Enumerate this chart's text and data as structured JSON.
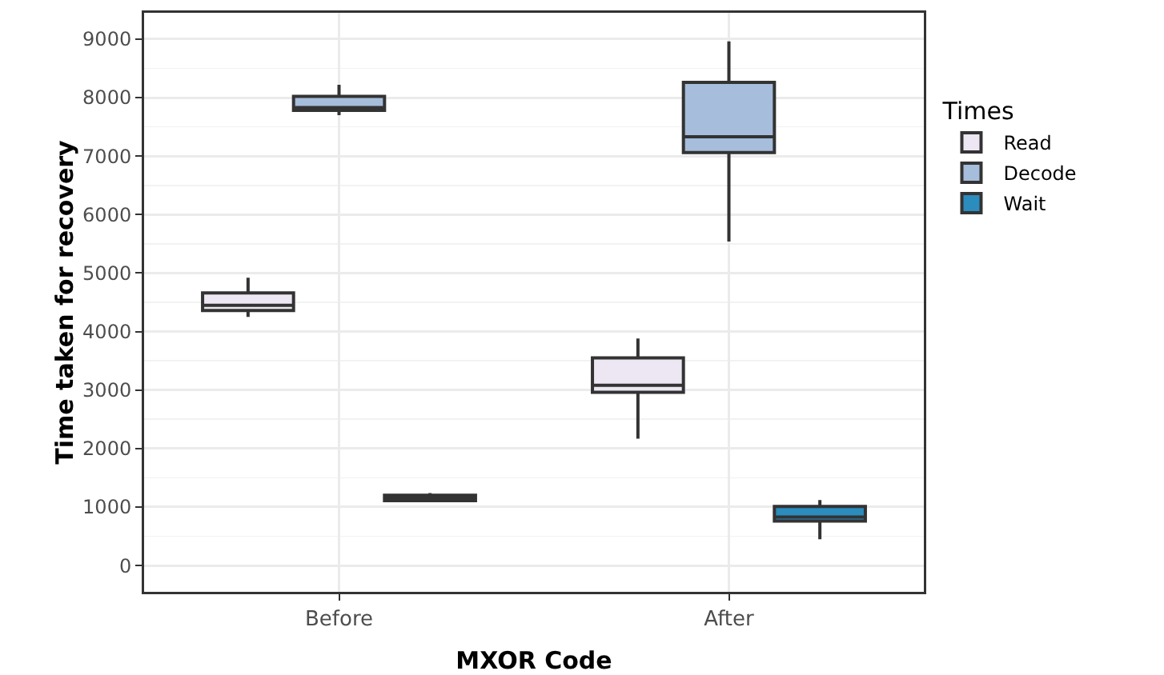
{
  "chart_data": {
    "type": "box",
    "xlabel": "MXOR Code",
    "ylabel": "Time taken for recovery",
    "legend_title": "Times",
    "categories": [
      "Before",
      "After"
    ],
    "ylim": [
      -450,
      9450
    ],
    "yticks": [
      0,
      1000,
      2000,
      3000,
      4000,
      5000,
      6000,
      7000,
      8000,
      9000
    ],
    "grid": true,
    "legend": "right",
    "series": [
      {
        "name": "Read",
        "color": "#ece7f2",
        "boxes": [
          {
            "low": 4250,
            "q1": 4360,
            "median": 4450,
            "q3": 4660,
            "high": 4920
          },
          {
            "low": 2170,
            "q1": 2960,
            "median": 3080,
            "q3": 3550,
            "high": 3880
          }
        ]
      },
      {
        "name": "Decode",
        "color": "#a6bddb",
        "boxes": [
          {
            "low": 7700,
            "q1": 7780,
            "median": 7830,
            "q3": 8020,
            "high": 8220
          },
          {
            "low": 5540,
            "q1": 7060,
            "median": 7330,
            "q3": 8260,
            "high": 8960
          }
        ]
      },
      {
        "name": "Wait",
        "color": "#2b8cbe",
        "boxes": [
          {
            "low": 1110,
            "q1": 1110,
            "median": 1150,
            "q3": 1200,
            "high": 1240
          },
          {
            "low": 450,
            "q1": 760,
            "median": 830,
            "q3": 1010,
            "high": 1120
          }
        ]
      }
    ]
  }
}
